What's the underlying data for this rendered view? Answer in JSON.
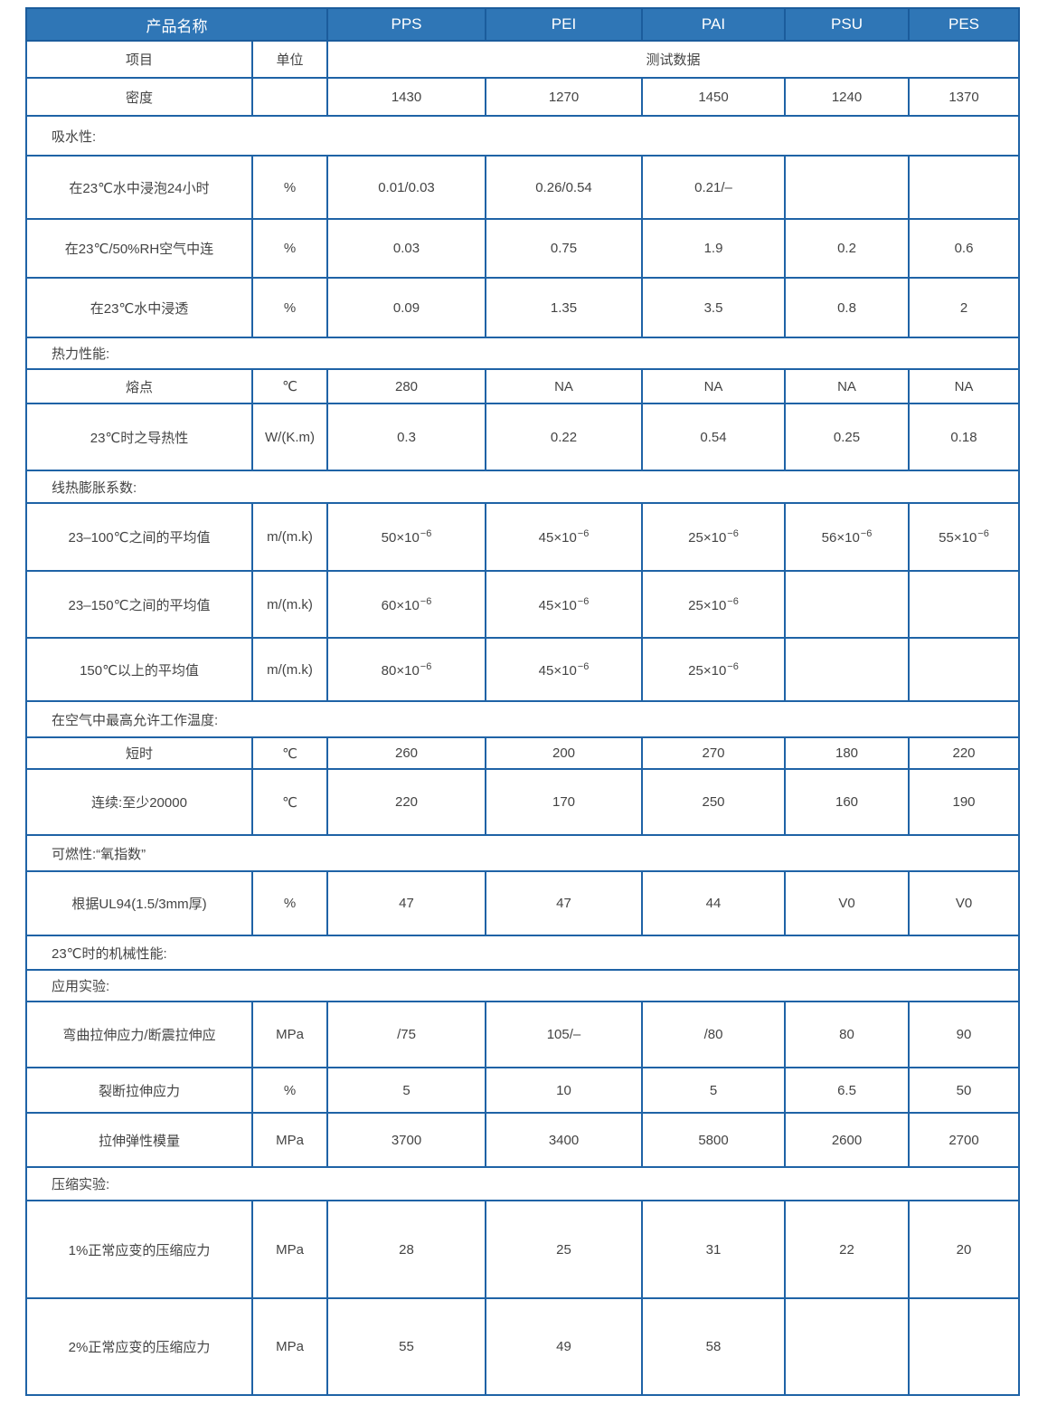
{
  "header": {
    "name_label": "产品名称",
    "products": [
      "PPS",
      "PEI",
      "PAI",
      "PSU",
      "PES"
    ]
  },
  "subheader": {
    "item_label": "项目",
    "unit_label": "单位",
    "data_label": "测试数据"
  },
  "rows": [
    {
      "type": "data",
      "item": "密度",
      "unit": "",
      "values": [
        "1430",
        "1270",
        "1450",
        "1240",
        "1370"
      ]
    },
    {
      "type": "section",
      "label": "吸水性:"
    },
    {
      "type": "data",
      "item": "在23℃水中浸泡24小时",
      "unit": "%",
      "values": [
        "0.01/0.03",
        "0.26/0.54",
        "0.21/–",
        "",
        ""
      ]
    },
    {
      "type": "data",
      "item": "在23℃/50%RH空气中连",
      "unit": "%",
      "values": [
        "0.03",
        "0.75",
        "1.9",
        "0.2",
        "0.6"
      ]
    },
    {
      "type": "data",
      "item": "在23℃水中浸透",
      "unit": "%",
      "values": [
        "0.09",
        "1.35",
        "3.5",
        "0.8",
        "2"
      ]
    },
    {
      "type": "section",
      "label": "热力性能:"
    },
    {
      "type": "data",
      "item": "熔点",
      "unit": "℃",
      "values": [
        "280",
        "NA",
        "NA",
        "NA",
        "NA"
      ]
    },
    {
      "type": "data",
      "item": "23℃时之导热性",
      "unit": "W/(K.m)",
      "values": [
        "0.3",
        "0.22",
        "0.54",
        "0.25",
        "0.18"
      ]
    },
    {
      "type": "section",
      "label": "线热膨胀系数:"
    },
    {
      "type": "data",
      "item": "23–100℃之间的平均值",
      "unit": "m/(m.k)",
      "values": [
        {
          "base": "50×10",
          "exp": "−6"
        },
        {
          "base": "45×10",
          "exp": "−6"
        },
        {
          "base": "25×10",
          "exp": "−6"
        },
        {
          "base": "56×10",
          "exp": "−6"
        },
        {
          "base": "55×10",
          "exp": "−6"
        }
      ]
    },
    {
      "type": "data",
      "item": "23–150℃之间的平均值",
      "unit": "m/(m.k)",
      "values": [
        {
          "base": "60×10",
          "exp": "−6"
        },
        {
          "base": "45×10",
          "exp": "−6"
        },
        {
          "base": "25×10",
          "exp": "−6"
        },
        "",
        ""
      ]
    },
    {
      "type": "data",
      "item": "150℃以上的平均值",
      "unit": "m/(m.k)",
      "values": [
        {
          "base": "80×10",
          "exp": "−6"
        },
        {
          "base": "45×10",
          "exp": "−6"
        },
        {
          "base": "25×10",
          "exp": "−6"
        },
        "",
        ""
      ]
    },
    {
      "type": "section",
      "label": "在空气中最高允许工作温度:"
    },
    {
      "type": "data",
      "item": "短时",
      "unit": "℃",
      "values": [
        "260",
        "200",
        "270",
        "180",
        "220"
      ]
    },
    {
      "type": "data",
      "item": "连续:至少20000",
      "unit": "℃",
      "values": [
        "220",
        "170",
        "250",
        "160",
        "190"
      ]
    },
    {
      "type": "section",
      "label": "可燃性:“氧指数”"
    },
    {
      "type": "data",
      "item": "根据UL94(1.5/3mm厚)",
      "unit": "%",
      "values": [
        "47",
        "47",
        "44",
        "V0",
        "V0"
      ]
    },
    {
      "type": "section",
      "label": "23℃时的机械性能:"
    },
    {
      "type": "section",
      "label": "应用实验:"
    },
    {
      "type": "data",
      "item": "弯曲拉伸应力/断震拉伸应",
      "unit": "MPa",
      "values": [
        "/75",
        "105/–",
        "/80",
        "80",
        "90"
      ]
    },
    {
      "type": "data",
      "item": "裂断拉伸应力",
      "unit": "%",
      "values": [
        "5",
        "10",
        "5",
        "6.5",
        "50"
      ]
    },
    {
      "type": "data",
      "item": "拉伸弹性模量",
      "unit": "MPa",
      "values": [
        "3700",
        "3400",
        "5800",
        "2600",
        "2700"
      ]
    },
    {
      "type": "section",
      "label": "压缩实验:"
    },
    {
      "type": "data",
      "item": "1%正常应变的压缩应力",
      "unit": "MPa",
      "values": [
        "28",
        "25",
        "31",
        "22",
        "20"
      ]
    },
    {
      "type": "data",
      "item": "2%正常应变的压缩应力",
      "unit": "MPa",
      "values": [
        "55",
        "49",
        "58",
        "",
        ""
      ]
    }
  ],
  "colors": {
    "header_bg": "#2f76b6",
    "border": "#1f63a6"
  }
}
